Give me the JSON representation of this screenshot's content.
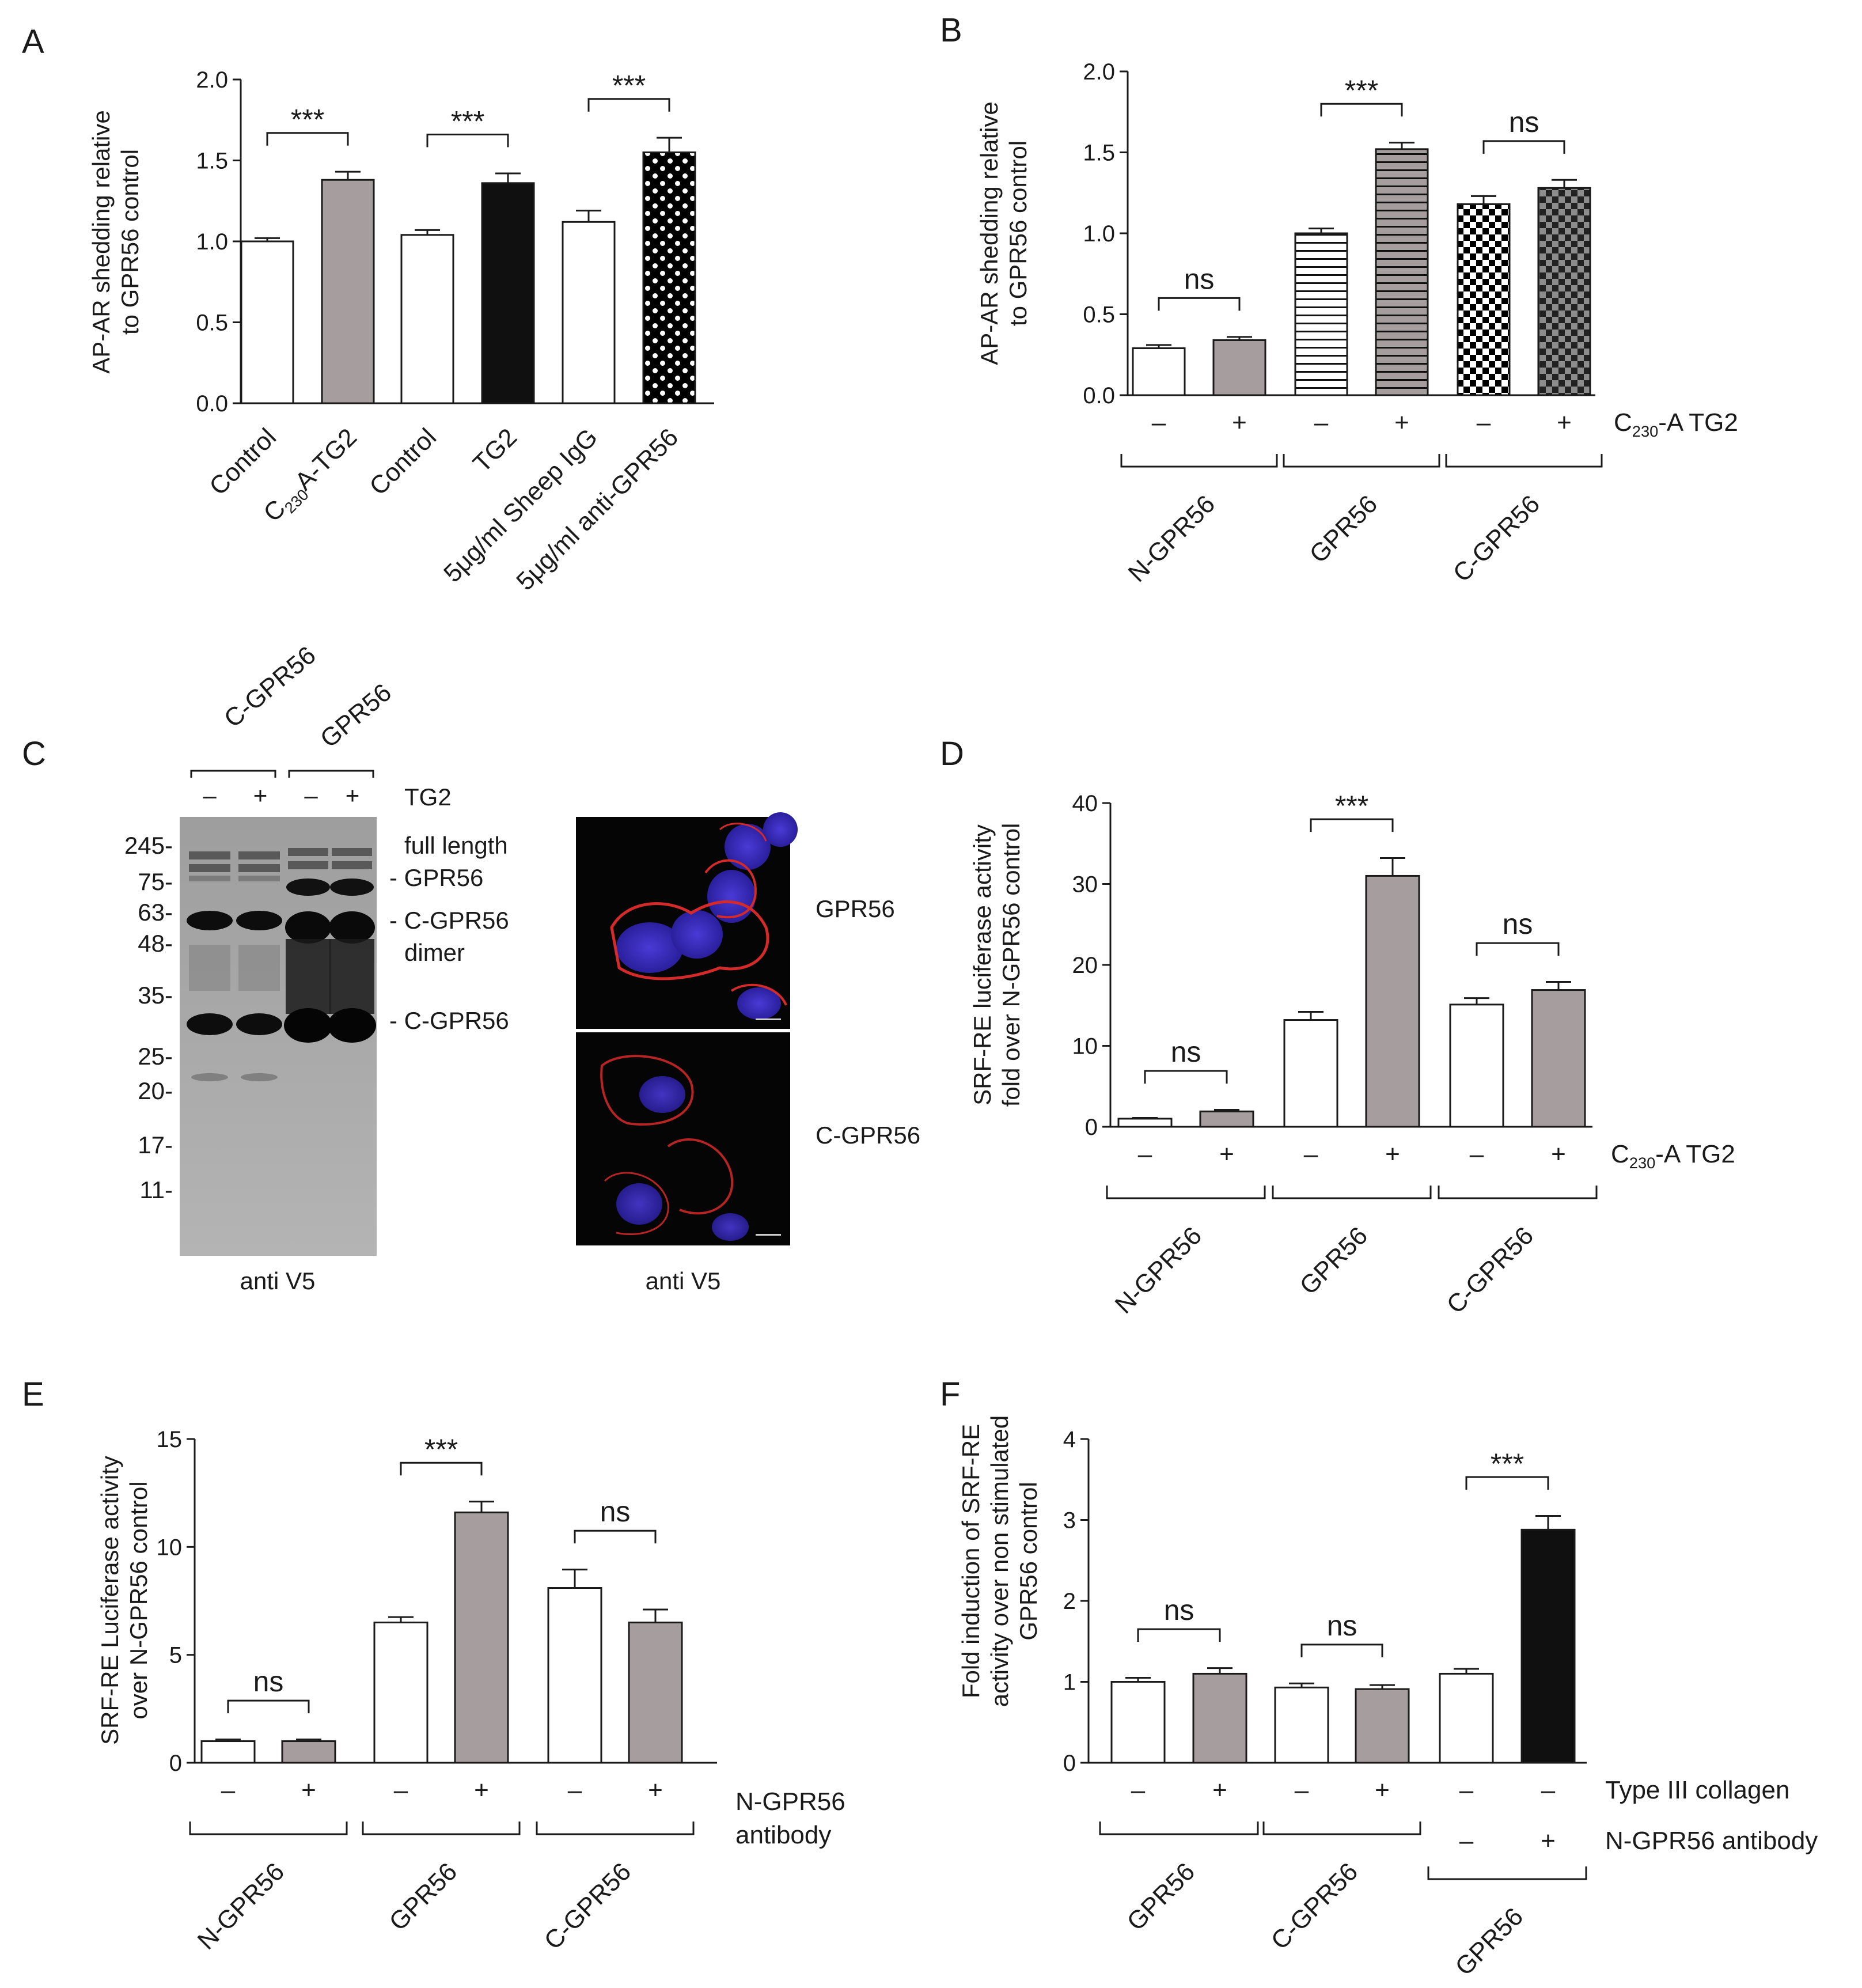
{
  "chart_data": [
    {
      "panel": "A",
      "type": "bar",
      "ylabel": "AP-AR shedding relative\nto GPR56 control",
      "ylim": [
        0,
        2.0
      ],
      "yticks": [
        "0.0",
        "0.5",
        "1.0",
        "1.5",
        "2.0"
      ],
      "categories": [
        "Control",
        "C230A-TG2",
        "Control",
        "TG2",
        "5μg/ml Sheep IgG",
        "5μg/ml anti-GPR56"
      ],
      "values": [
        1.0,
        1.38,
        1.04,
        1.36,
        1.12,
        1.55
      ],
      "errors": [
        0.02,
        0.05,
        0.03,
        0.06,
        0.07,
        0.09
      ],
      "fills": [
        "white",
        "gray",
        "white",
        "black",
        "white",
        "dots"
      ],
      "significance": [
        {
          "label": "***",
          "from": 0,
          "to": 1
        },
        {
          "label": "***",
          "from": 2,
          "to": 3
        },
        {
          "label": "***",
          "from": 4,
          "to": 5
        }
      ]
    },
    {
      "panel": "B",
      "type": "bar",
      "ylabel": "AP-AR shedding relative\nto GPR56 control",
      "ylim": [
        0,
        2.0
      ],
      "yticks": [
        "0.0",
        "0.5",
        "1.0",
        "1.5",
        "2.0"
      ],
      "values": [
        0.29,
        0.34,
        1.0,
        1.52,
        1.18,
        1.28
      ],
      "errors": [
        0.02,
        0.02,
        0.03,
        0.04,
        0.05,
        0.05
      ],
      "fills": [
        "white",
        "gray",
        "hstripe-white",
        "hstripe-gray",
        "checker-white",
        "checker-gray"
      ],
      "treatment_signs": [
        "–",
        "+",
        "–",
        "+",
        "–",
        "+"
      ],
      "treatment_label": "C230-A TG2",
      "groups": [
        "N-GPR56",
        "GPR56",
        "C-GPR56"
      ],
      "significance": [
        {
          "label": "ns",
          "from": 0,
          "to": 1
        },
        {
          "label": "***",
          "from": 2,
          "to": 3
        },
        {
          "label": "ns",
          "from": 4,
          "to": 5
        }
      ]
    },
    {
      "panel": "D",
      "type": "bar",
      "ylabel": "SRF-RE luciferase activity\nfold over N-GPR56 control",
      "ylim": [
        0,
        40
      ],
      "yticks": [
        "0",
        "10",
        "20",
        "30",
        "40"
      ],
      "values": [
        1.0,
        1.9,
        13.2,
        31.0,
        15.1,
        16.9
      ],
      "errors": [
        0.1,
        0.2,
        1.0,
        2.2,
        0.8,
        1.0
      ],
      "fills": [
        "white",
        "gray",
        "white",
        "gray",
        "white",
        "gray"
      ],
      "treatment_signs": [
        "–",
        "+",
        "–",
        "+",
        "–",
        "+"
      ],
      "treatment_label": "C230-A TG2",
      "groups": [
        "N-GPR56",
        "GPR56",
        "C-GPR56"
      ],
      "significance": [
        {
          "label": "ns",
          "from": 0,
          "to": 1
        },
        {
          "label": "***",
          "from": 2,
          "to": 3
        },
        {
          "label": "ns",
          "from": 4,
          "to": 5
        }
      ]
    },
    {
      "panel": "E",
      "type": "bar",
      "ylabel": "SRF-RE Luciferase activity\nover N-GPR56 control",
      "ylim": [
        0,
        15
      ],
      "yticks": [
        "0",
        "5",
        "10",
        "15"
      ],
      "values": [
        1.0,
        1.0,
        6.5,
        11.6,
        8.1,
        6.5
      ],
      "errors": [
        0.08,
        0.08,
        0.25,
        0.5,
        0.85,
        0.6
      ],
      "fills": [
        "white",
        "gray",
        "white",
        "gray",
        "white",
        "gray"
      ],
      "treatment_signs": [
        "–",
        "+",
        "–",
        "+",
        "–",
        "+"
      ],
      "treatment_label": "N-GPR56\nantibody",
      "groups": [
        "N-GPR56",
        "GPR56",
        "C-GPR56"
      ],
      "significance": [
        {
          "label": "ns",
          "from": 0,
          "to": 1
        },
        {
          "label": "***",
          "from": 2,
          "to": 3
        },
        {
          "label": "ns",
          "from": 4,
          "to": 5
        }
      ]
    },
    {
      "panel": "F",
      "type": "bar",
      "ylabel": "Fold induction of SRF-RE\nactivity over non stimulated\nGPR56 control",
      "ylim": [
        0,
        4
      ],
      "yticks": [
        "0",
        "1",
        "2",
        "3",
        "4"
      ],
      "values": [
        1.0,
        1.1,
        0.93,
        0.91,
        1.1,
        2.88
      ],
      "errors": [
        0.05,
        0.07,
        0.05,
        0.05,
        0.06,
        0.17
      ],
      "fills": [
        "white",
        "gray",
        "white",
        "gray",
        "white",
        "black"
      ],
      "treatment_signs": [
        "–",
        "+",
        "–",
        "+",
        "–",
        "–"
      ],
      "treatment_label": "Type III collagen",
      "treatment2_signs": [
        "–",
        "+"
      ],
      "treatment2_label": "N-GPR56 antibody",
      "groups": [
        "GPR56",
        "C-GPR56",
        "GPR56"
      ],
      "significance": [
        {
          "label": "ns",
          "from": 0,
          "to": 1
        },
        {
          "label": "ns",
          "from": 2,
          "to": 3
        },
        {
          "label": "***",
          "from": 4,
          "to": 5
        }
      ]
    }
  ],
  "panel_letters": [
    "A",
    "B",
    "C",
    "D",
    "E",
    "F"
  ],
  "panel_c": {
    "lane_groups": [
      "C-GPR56",
      "GPR56"
    ],
    "lane_signs": [
      "–",
      "+",
      "–",
      "+"
    ],
    "treatment_label": "TG2",
    "markers": [
      "245-",
      "75-",
      "63-",
      "48-",
      "35-",
      "25-",
      "20-",
      "17-",
      "11-"
    ],
    "band_labels": [
      "full length",
      "- GPR56",
      "- C-GPR56",
      "dimer",
      "- C-GPR56"
    ],
    "blot_caption": "anti V5",
    "image_labels": [
      "GPR56",
      "C-GPR56"
    ],
    "image_caption": "anti V5"
  },
  "colors": {
    "gray_bar": "#a59d9e",
    "black_bar": "#101010",
    "axis": "#1a1a1a",
    "nucleus": "#3d2fc9",
    "membrane": "#d42a2a"
  }
}
